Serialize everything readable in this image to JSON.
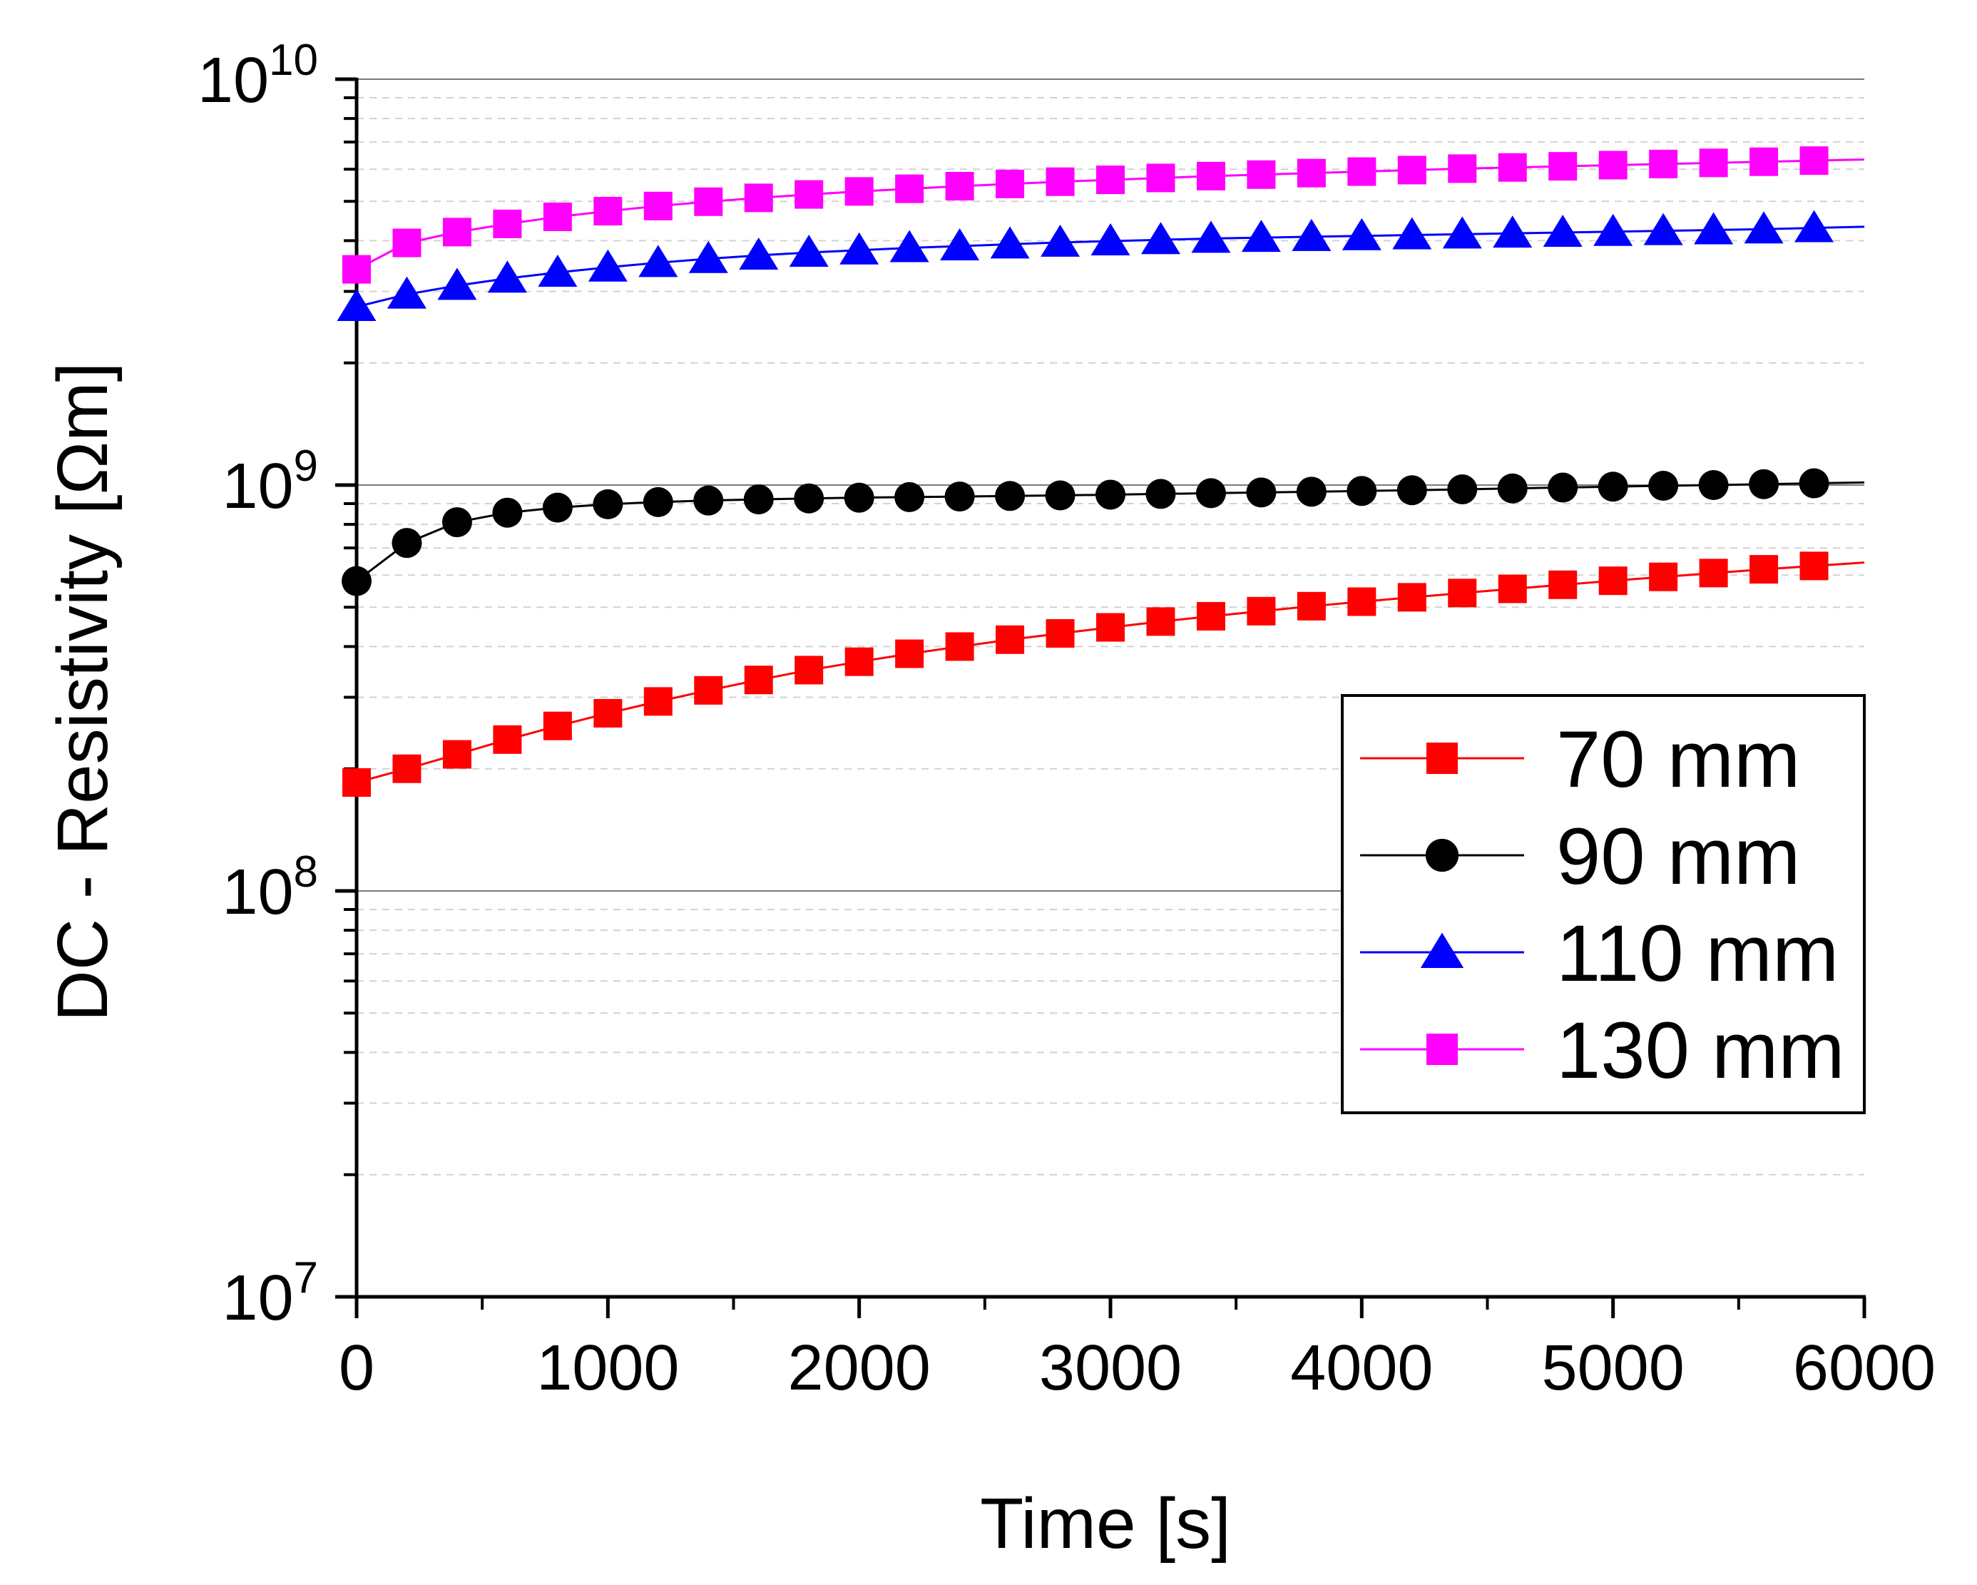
{
  "chart_data": {
    "type": "line",
    "title": "",
    "xlabel": "Time [s]",
    "ylabel": "DC - Resistivity [Ωm]",
    "xlim": [
      0,
      6000
    ],
    "ylim": [
      10000000,
      10000000000
    ],
    "yscale": "log",
    "grid": "horizontal major and minor",
    "x_ticks": [
      0,
      1000,
      2000,
      3000,
      4000,
      5000,
      6000
    ],
    "x_tick_labels": [
      "0",
      "1000",
      "2000",
      "3000",
      "4000",
      "5000",
      "6000"
    ],
    "y_ticks": [
      {
        "value": 10000000,
        "base": "10",
        "exp": "7"
      },
      {
        "value": 100000000,
        "base": "10",
        "exp": "8"
      },
      {
        "value": 1000000000,
        "base": "10",
        "exp": "9"
      },
      {
        "value": 10000000000,
        "base": "10",
        "exp": "10"
      }
    ],
    "legend_position": "right-middle",
    "x": [
      0,
      200,
      400,
      600,
      800,
      1000,
      1200,
      1400,
      1600,
      1800,
      2000,
      2200,
      2400,
      2600,
      2800,
      3000,
      3200,
      3400,
      3600,
      3800,
      4000,
      4200,
      4400,
      4600,
      4800,
      5000,
      5200,
      5400,
      5600,
      5800
    ],
    "series": [
      {
        "name": "70 mm",
        "color": "#ff0000",
        "marker": "square",
        "values": [
          185000000,
          200000000,
          217000000,
          236000000,
          255000000,
          274000000,
          293000000,
          312000000,
          331000000,
          350000000,
          367000000,
          384000000,
          400000000,
          416000000,
          431000000,
          446000000,
          461000000,
          475000000,
          489000000,
          503000000,
          516000000,
          529000000,
          542000000,
          555000000,
          568000000,
          581000000,
          594000000,
          607000000,
          620000000,
          632000000
        ]
      },
      {
        "name": "90 mm",
        "color": "#000000",
        "marker": "circle",
        "values": [
          580000000,
          720000000,
          810000000,
          855000000,
          880000000,
          897000000,
          908000000,
          916000000,
          922000000,
          927000000,
          931000000,
          934000000,
          937000000,
          940000000,
          943000000,
          947000000,
          951000000,
          955000000,
          959000000,
          963000000,
          967000000,
          971000000,
          976000000,
          981000000,
          986000000,
          991000000,
          996000000,
          1000000000,
          1005000000,
          1010000000
        ]
      },
      {
        "name": "110 mm",
        "color": "#0000ff",
        "marker": "triangle",
        "values": [
          2750000000,
          2950000000,
          3100000000,
          3230000000,
          3340000000,
          3440000000,
          3530000000,
          3610000000,
          3680000000,
          3740000000,
          3790000000,
          3840000000,
          3880000000,
          3920000000,
          3960000000,
          3990000000,
          4020000000,
          4050000000,
          4070000000,
          4090000000,
          4110000000,
          4130000000,
          4150000000,
          4170000000,
          4190000000,
          4210000000,
          4230000000,
          4250000000,
          4270000000,
          4300000000
        ]
      },
      {
        "name": "130 mm",
        "color": "#ff00ff",
        "marker": "square",
        "values": [
          3400000000,
          3950000000,
          4200000000,
          4400000000,
          4580000000,
          4730000000,
          4870000000,
          4990000000,
          5100000000,
          5200000000,
          5290000000,
          5370000000,
          5450000000,
          5520000000,
          5590000000,
          5650000000,
          5710000000,
          5770000000,
          5820000000,
          5870000000,
          5920000000,
          5970000000,
          6020000000,
          6060000000,
          6100000000,
          6140000000,
          6180000000,
          6220000000,
          6260000000,
          6300000000
        ]
      }
    ]
  }
}
